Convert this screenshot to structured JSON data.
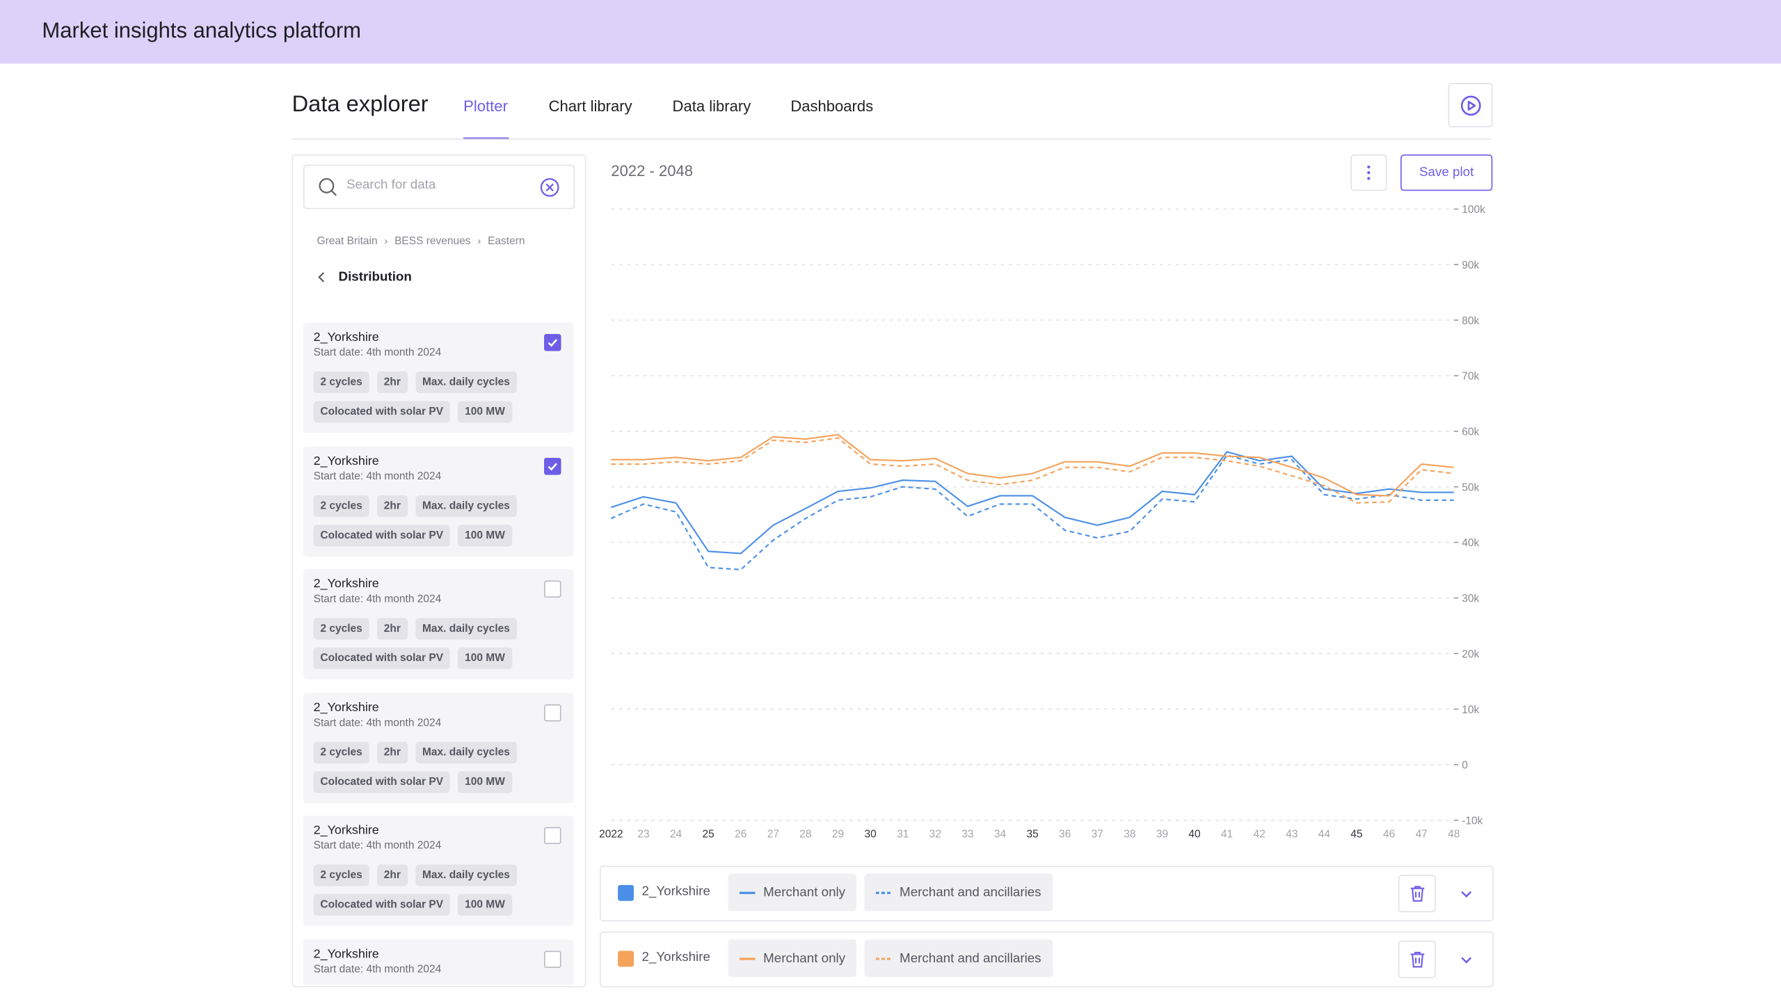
{
  "header": {
    "title": "Market insights analytics platform"
  },
  "nav": {
    "title": "Data explorer",
    "tabs": [
      "Plotter",
      "Chart library",
      "Data library",
      "Dashboards"
    ],
    "active_tab": 0
  },
  "sidebar": {
    "search_placeholder": "Search for data",
    "breadcrumb": [
      "Great Britain",
      "BESS revenues",
      "Eastern"
    ],
    "section": "Distribution",
    "items": [
      {
        "title": "2_Yorkshire",
        "subtitle": "Start date: 4th month 2024",
        "tags": [
          "2 cycles",
          "2hr",
          "Max. daily cycles",
          "Colocated with solar PV",
          "100 MW"
        ],
        "checked": true
      },
      {
        "title": "2_Yorkshire",
        "subtitle": "Start date: 4th month 2024",
        "tags": [
          "2 cycles",
          "2hr",
          "Max. daily cycles",
          "Colocated with solar PV",
          "100 MW"
        ],
        "checked": true
      },
      {
        "title": "2_Yorkshire",
        "subtitle": "Start date: 4th month 2024",
        "tags": [
          "2 cycles",
          "2hr",
          "Max. daily cycles",
          "Colocated with solar PV",
          "100 MW"
        ],
        "checked": false
      },
      {
        "title": "2_Yorkshire",
        "subtitle": "Start date: 4th month 2024",
        "tags": [
          "2 cycles",
          "2hr",
          "Max. daily cycles",
          "Colocated with solar PV",
          "100 MW"
        ],
        "checked": false
      },
      {
        "title": "2_Yorkshire",
        "subtitle": "Start date: 4th month 2024",
        "tags": [
          "2 cycles",
          "2hr",
          "Max. daily cycles",
          "Colocated with solar PV",
          "100 MW"
        ],
        "checked": false
      },
      {
        "title": "2_Yorkshire",
        "subtitle": "Start date: 4th month 2024",
        "checked": false
      }
    ]
  },
  "actions": {
    "save": "Save plot"
  },
  "chart_data": {
    "type": "line",
    "subtitle": "2022 - 2048",
    "categories": [
      "2022",
      "23",
      "24",
      "25",
      "26",
      "27",
      "28",
      "29",
      "30",
      "31",
      "32",
      "33",
      "34",
      "35",
      "36",
      "37",
      "38",
      "39",
      "40",
      "41",
      "42",
      "43",
      "44",
      "45",
      "46",
      "47",
      "48"
    ],
    "ylim": [
      -10000,
      100000
    ],
    "yticks": [
      {
        "value": -10000,
        "label": "-10k"
      },
      0,
      {
        "value": 10000,
        "label": "10k"
      },
      {
        "value": 20000,
        "label": "20k"
      },
      {
        "value": 30000,
        "label": "30k"
      },
      {
        "value": 40000,
        "label": "40k"
      },
      {
        "value": 50000,
        "label": "50k"
      },
      {
        "value": 60000,
        "label": "60k"
      },
      {
        "value": 70000,
        "label": "70k"
      },
      {
        "value": 80000,
        "label": "80k"
      },
      {
        "value": 90000,
        "label": "90k"
      },
      {
        "value": 100000,
        "label": "100k"
      }
    ],
    "grid": true,
    "series": [
      {
        "name": "Merchant only",
        "group": "2_Yorkshire",
        "color": "#4a8fe7",
        "dash": false,
        "values": [
          46300,
          48200,
          47100,
          38400,
          38000,
          43100,
          46100,
          49200,
          49800,
          51200,
          51000,
          46500,
          48400,
          48400,
          44500,
          43100,
          44500,
          49200,
          48600,
          56300,
          54700,
          55500,
          49600,
          48800,
          49600,
          49000,
          49000
        ]
      },
      {
        "name": "Merchant and ancillaries",
        "group": "2_Yorkshire",
        "color": "#4a8fe7",
        "dash": true,
        "values": [
          44300,
          46900,
          45500,
          35500,
          35100,
          40400,
          44300,
          47600,
          48200,
          50000,
          49600,
          44700,
          46900,
          46900,
          42200,
          40800,
          42000,
          47800,
          47300,
          55700,
          54100,
          54900,
          48600,
          47800,
          48600,
          47600,
          47600
        ]
      },
      {
        "name": "Merchant only",
        "group": "2_Yorkshire",
        "color": "#f5a25a",
        "dash": false,
        "values": [
          54900,
          54900,
          55300,
          54700,
          55300,
          59000,
          58600,
          59400,
          54900,
          54700,
          55100,
          52400,
          51600,
          52400,
          54500,
          54500,
          53700,
          56100,
          56100,
          55500,
          55300,
          53500,
          51600,
          48600,
          48400,
          54100,
          53500
        ]
      },
      {
        "name": "Merchant and ancillaries",
        "group": "2_Yorkshire",
        "color": "#f5a25a",
        "dash": true,
        "values": [
          54100,
          54100,
          54500,
          54100,
          54700,
          58400,
          58000,
          58800,
          54100,
          53700,
          54100,
          51200,
          50400,
          51200,
          53500,
          53500,
          52700,
          55300,
          55300,
          54700,
          53700,
          52000,
          50200,
          47100,
          47300,
          53100,
          52400
        ]
      }
    ]
  }
}
